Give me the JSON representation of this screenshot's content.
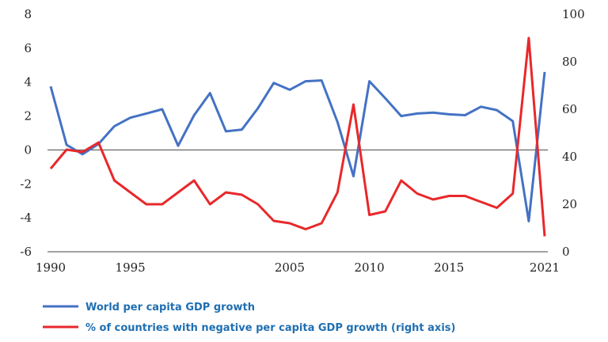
{
  "chart_data": {
    "type": "line",
    "title": "",
    "xlabel": "",
    "ylabel": "",
    "xlim": [
      1990,
      2021
    ],
    "ylim_left": [
      -6,
      8
    ],
    "ylim_right": [
      0,
      100
    ],
    "x_tick_labels": [
      "1990",
      "1995",
      "2005",
      "2010",
      "2015",
      "2021"
    ],
    "x_tick_values": [
      1990,
      1995,
      2005,
      2010,
      2015,
      2021
    ],
    "y_left_ticks": [
      "8",
      "6",
      "4",
      "2",
      "0",
      "-2",
      "-4",
      "-6"
    ],
    "y_left_tick_values": [
      8,
      6,
      4,
      2,
      0,
      -2,
      -4,
      -6
    ],
    "y_right_ticks": [
      "100",
      "80",
      "60",
      "40",
      "20",
      "0"
    ],
    "y_right_tick_values": [
      100,
      80,
      60,
      40,
      20,
      0
    ],
    "grid": false,
    "legend_position": "bottom-left",
    "series": [
      {
        "name": "World per capita GDP growth",
        "axis": "left",
        "color": "#4472c4",
        "x": [
          1990,
          1991,
          1992,
          1993,
          1994,
          1995,
          1996,
          1997,
          1998,
          1999,
          2000,
          2001,
          2002,
          2003,
          2004,
          2005,
          2006,
          2007,
          2008,
          2009,
          2010,
          2011,
          2012,
          2013,
          2014,
          2015,
          2016,
          2017,
          2018,
          2019,
          2020,
          2021
        ],
        "values": [
          3.75,
          0.3,
          -0.25,
          0.35,
          1.4,
          1.9,
          2.15,
          2.4,
          0.25,
          2.05,
          3.35,
          1.1,
          1.2,
          2.45,
          3.95,
          3.55,
          4.05,
          4.1,
          1.65,
          -1.55,
          4.05,
          3.05,
          2.0,
          2.15,
          2.2,
          2.1,
          2.05,
          2.55,
          2.35,
          1.7,
          -4.2,
          4.6
        ]
      },
      {
        "name": "% of countries with negative per capita GDP growth (right axis)",
        "axis": "right",
        "color": "#e8282b",
        "x": [
          1990,
          1991,
          1992,
          1993,
          1994,
          1995,
          1996,
          1997,
          1998,
          1999,
          2000,
          2001,
          2002,
          2003,
          2004,
          2005,
          2006,
          2007,
          2008,
          2009,
          2010,
          2011,
          2012,
          2013,
          2014,
          2015,
          2016,
          2017,
          2018,
          2019,
          2020,
          2021
        ],
        "values": [
          35,
          43,
          42,
          46,
          30,
          25,
          20,
          20,
          25,
          30,
          20,
          25,
          24,
          20,
          13,
          12,
          9.5,
          12,
          25,
          62,
          15.5,
          17,
          30,
          24.5,
          22,
          23.5,
          23.5,
          21,
          18.5,
          24.5,
          90,
          6.5
        ]
      }
    ]
  }
}
